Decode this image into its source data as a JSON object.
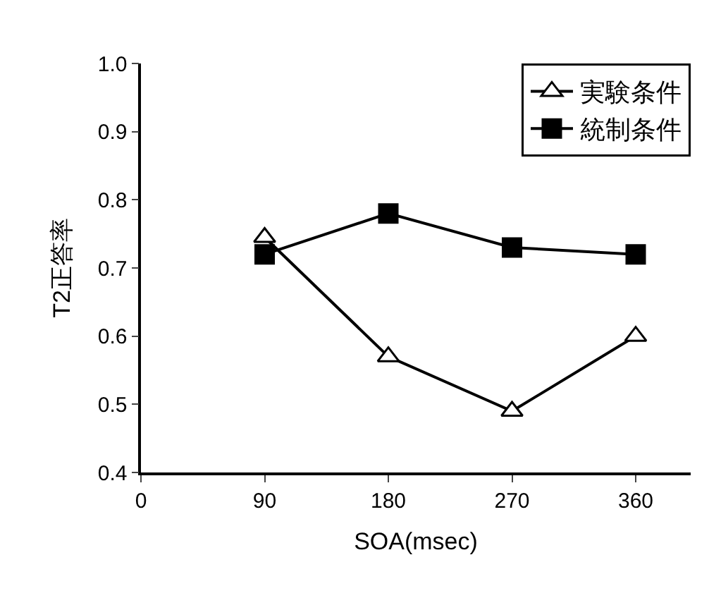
{
  "chart_data": {
    "type": "line",
    "xlabel": "SOA(msec)",
    "ylabel": "T2正答率",
    "x": [
      90,
      180,
      270,
      360
    ],
    "series": [
      {
        "name": "実験条件",
        "color": "#000000",
        "marker": "triangle",
        "values": [
          0.745,
          0.57,
          0.49,
          0.6
        ]
      },
      {
        "name": "統制条件",
        "color": "#000000",
        "marker": "square",
        "values": [
          0.72,
          0.78,
          0.73,
          0.72
        ]
      }
    ],
    "xlim": [
      0,
      400
    ],
    "xticks": [
      0,
      90,
      180,
      270,
      360
    ],
    "ylim": [
      0.4,
      1.0
    ],
    "yticks": [
      {
        "value": 0.4,
        "label": "0.4"
      },
      {
        "value": 0.5,
        "label": "0.5"
      },
      {
        "value": 0.6,
        "label": "0.6"
      },
      {
        "value": 0.7,
        "label": "0.7"
      },
      {
        "value": 0.8,
        "label": "0.8"
      },
      {
        "value": 0.9,
        "label": "0.9"
      },
      {
        "value": 1.0,
        "label": "1.0"
      }
    ],
    "legend": "top right",
    "line_style": "solid"
  }
}
